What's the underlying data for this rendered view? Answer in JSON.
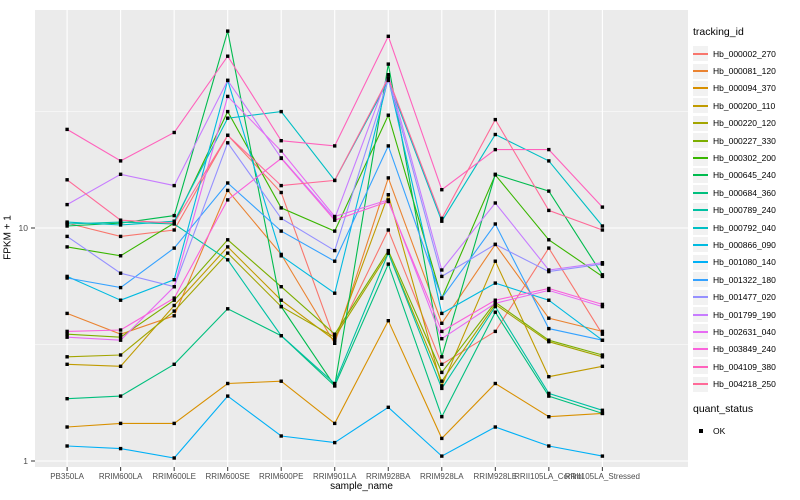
{
  "chart_data": {
    "type": "line",
    "title": "",
    "xlabel": "sample_name",
    "ylabel": "FPKM + 1",
    "x_scale": "discrete",
    "y_scale": "log10",
    "ylim": [
      0.94,
      86
    ],
    "y_breaks": [
      1,
      10
    ],
    "y_break_labels": [
      "1",
      "10"
    ],
    "y_minor_breaks": [
      3.162,
      31.623
    ],
    "grid": "on",
    "legend_position": "right",
    "marker": "black-square",
    "categories": [
      "PB350LA",
      "RRIM600LA",
      "RRIM600LE",
      "RRIM600SE",
      "RRIM600PE",
      "RRIM901LA",
      "RRIM928BA",
      "RRIM928LA",
      "RRIM928LE",
      "RRII105LA_Control",
      "RRII105LA_Stressed"
    ],
    "series": [
      {
        "name": "Hb_000002_270",
        "color": "#F8766D",
        "values": [
          10.5,
          9.2,
          9.8,
          25.0,
          14.2,
          3.3,
          9.8,
          2.6,
          3.6,
          8.2,
          3.5
        ]
      },
      {
        "name": "Hb_000081_120",
        "color": "#EA8331",
        "values": [
          4.3,
          3.5,
          4.2,
          14.5,
          7.7,
          3.2,
          16.4,
          3.9,
          8.5,
          4.1,
          3.6
        ]
      },
      {
        "name": "Hb_000094_370",
        "color": "#D89000",
        "values": [
          1.4,
          1.45,
          1.45,
          2.15,
          2.2,
          1.45,
          4.0,
          1.25,
          2.15,
          1.55,
          1.6
        ]
      },
      {
        "name": "Hb_000200_110",
        "color": "#C09B00",
        "values": [
          2.6,
          2.55,
          4.65,
          8.3,
          4.9,
          3.3,
          13.9,
          2.1,
          7.2,
          2.3,
          2.55
        ]
      },
      {
        "name": "Hb_000220_120",
        "color": "#A3A500",
        "values": [
          2.8,
          2.85,
          4.4,
          7.8,
          4.6,
          3.4,
          7.8,
          2.2,
          4.7,
          3.25,
          2.8
        ]
      },
      {
        "name": "Hb_000227_330",
        "color": "#7CAE00",
        "values": [
          3.5,
          3.4,
          4.9,
          8.9,
          5.6,
          3.5,
          8.0,
          2.4,
          4.8,
          3.3,
          2.85
        ]
      },
      {
        "name": "Hb_000302_200",
        "color": "#39B600",
        "values": [
          8.3,
          7.6,
          10.5,
          31.6,
          12.2,
          9.7,
          30.5,
          5.0,
          16.9,
          8.9,
          6.2
        ]
      },
      {
        "name": "Hb_000645_240",
        "color": "#00BB4E",
        "values": [
          10.2,
          10.5,
          11.3,
          70.0,
          4.6,
          2.1,
          50.5,
          2.8,
          17.0,
          14.4,
          6.3
        ]
      },
      {
        "name": "Hb_000684_360",
        "color": "#00BF7D",
        "values": [
          1.85,
          1.9,
          2.6,
          4.5,
          3.45,
          2.1,
          7.0,
          1.55,
          4.35,
          1.9,
          1.6
        ]
      },
      {
        "name": "Hb_000789_240",
        "color": "#00C1A3",
        "values": [
          10.4,
          10.6,
          10.4,
          7.3,
          3.45,
          2.15,
          7.8,
          2.05,
          4.6,
          1.95,
          1.65
        ]
      },
      {
        "name": "Hb_000792_040",
        "color": "#00BFC4",
        "values": [
          10.6,
          10.3,
          10.7,
          29.6,
          31.6,
          16.0,
          43.0,
          10.7,
          25.2,
          19.4,
          10.2
        ]
      },
      {
        "name": "Hb_000866_090",
        "color": "#00BAE0",
        "values": [
          6.2,
          4.9,
          6.0,
          43.0,
          7.6,
          5.25,
          44.0,
          4.3,
          5.8,
          4.9,
          3.3
        ]
      },
      {
        "name": "Hb_001080_140",
        "color": "#00B0F6",
        "values": [
          1.16,
          1.13,
          1.03,
          1.9,
          1.28,
          1.2,
          1.7,
          1.05,
          1.4,
          1.16,
          1.05
        ]
      },
      {
        "name": "Hb_001322_180",
        "color": "#35A2FF",
        "values": [
          6.1,
          5.55,
          8.2,
          15.6,
          9.7,
          7.2,
          22.5,
          5.0,
          10.4,
          3.7,
          3.3
        ]
      },
      {
        "name": "Hb_001477_020",
        "color": "#9590FF",
        "values": [
          9.2,
          6.4,
          5.6,
          23.2,
          11.0,
          8.0,
          43.5,
          6.2,
          8.5,
          6.5,
          7.0
        ]
      },
      {
        "name": "Hb_001799_190",
        "color": "#C77CFF",
        "values": [
          12.6,
          17.0,
          15.2,
          43.0,
          20.0,
          11.0,
          45.5,
          6.6,
          12.8,
          6.6,
          7.1
        ]
      },
      {
        "name": "Hb_002631_040",
        "color": "#E76BF3",
        "values": [
          3.4,
          3.3,
          5.6,
          36.7,
          21.4,
          11.2,
          13.2,
          3.35,
          4.75,
          5.4,
          4.6
        ]
      },
      {
        "name": "Hb_003849_240",
        "color": "#FA62DB",
        "values": [
          3.6,
          3.65,
          5.0,
          13.2,
          19.9,
          10.8,
          13.0,
          3.6,
          4.9,
          5.5,
          4.7
        ]
      },
      {
        "name": "Hb_004109_380",
        "color": "#FF62BC",
        "values": [
          26.5,
          19.4,
          25.7,
          54.6,
          23.7,
          22.5,
          66.5,
          14.6,
          21.7,
          21.7,
          12.3
        ]
      },
      {
        "name": "Hb_004218_250",
        "color": "#FF6A98",
        "values": [
          16.1,
          10.8,
          10.5,
          25.0,
          15.2,
          16.0,
          44.0,
          11.0,
          29.2,
          11.9,
          9.8
        ]
      }
    ],
    "legend": {
      "tracking_title": "tracking_id",
      "quant_title": "quant_status",
      "quant_value": "OK"
    },
    "style": {
      "panel_bg": "#EBEBEB",
      "grid_color": "#FFFFFF",
      "tick_label_color": "#4D4D4D",
      "marker_color": "#000000",
      "legend_key_bg": "#F2F2F2"
    }
  }
}
